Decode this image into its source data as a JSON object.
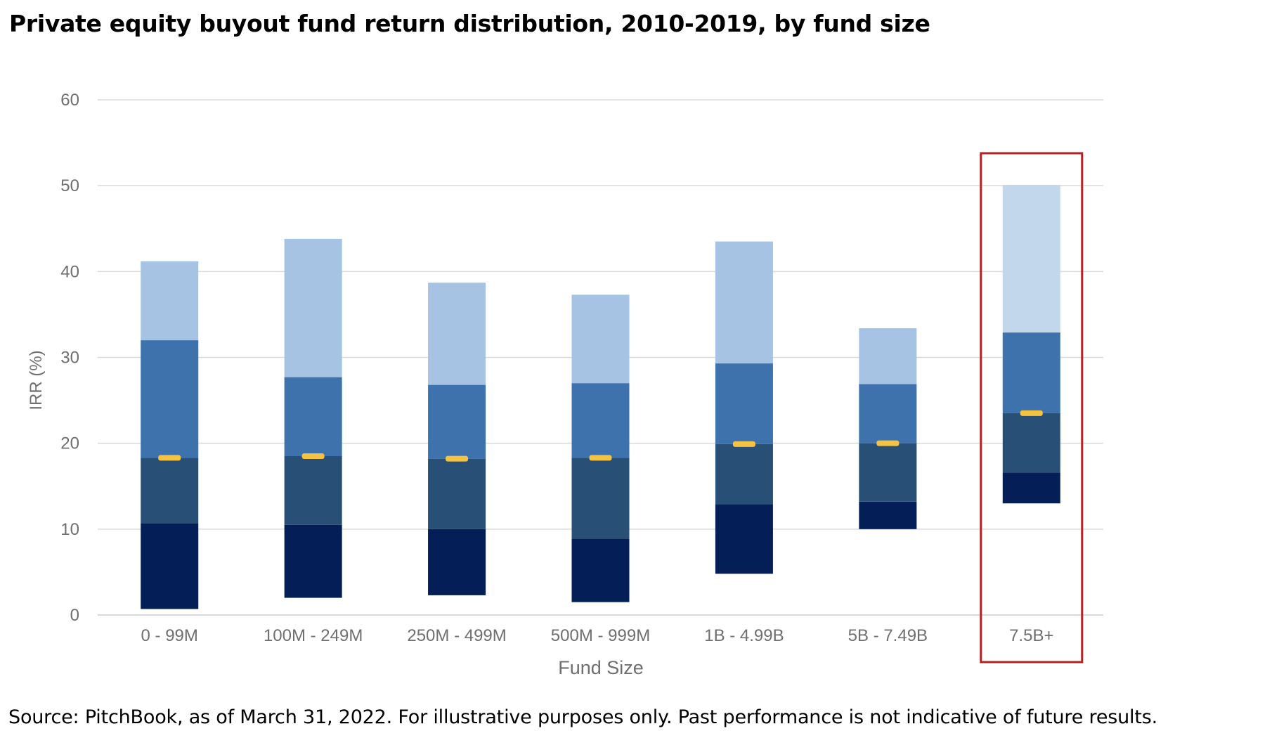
{
  "title": "Private equity buyout fund return distribution, 2010-2019, by fund size",
  "source": "Source: PitchBook, as of March 31, 2022. For illustrative purposes only. Past performance is not indicative of future results.",
  "colors": {
    "bottom_segment": "#041e57",
    "lower_mid_segment": "#284f76",
    "upper_mid_segment": "#3e72ac",
    "top_segment": "#a6c3e4",
    "top_segment_highlighted": "#c2d7ec",
    "median_marker": "#f5c242",
    "highlight_box": "#b22222",
    "gridline": "#d9d9d9",
    "axis_text": "#6f6f6f"
  },
  "chart_data": {
    "type": "bar",
    "subtype": "floating stacked bar (return distribution)",
    "title": "Private equity buyout fund return distribution, 2010-2019, by fund size",
    "xlabel": "Fund Size",
    "ylabel": "IRR (%)",
    "ylim": [
      0,
      60
    ],
    "yticks": [
      0,
      10,
      20,
      30,
      40,
      50,
      60
    ],
    "grid": true,
    "categories": [
      "0 - 99M",
      "100M - 249M",
      "250M - 499M",
      "500M - 999M",
      "1B - 4.99B",
      "5B - 7.49B",
      "7.5B+"
    ],
    "distribution": [
      {
        "category": "0 - 99M",
        "min": 0.7,
        "q1": 10.7,
        "median_bar": 18.3,
        "q3": 32.0,
        "max": 41.2,
        "marker": 18.3
      },
      {
        "category": "100M - 249M",
        "min": 2.0,
        "q1": 10.5,
        "median_bar": 18.5,
        "q3": 27.7,
        "max": 43.8,
        "marker": 18.5
      },
      {
        "category": "250M - 499M",
        "min": 2.3,
        "q1": 10.0,
        "median_bar": 18.2,
        "q3": 26.8,
        "max": 38.7,
        "marker": 18.2
      },
      {
        "category": "500M - 999M",
        "min": 1.5,
        "q1": 8.9,
        "median_bar": 18.3,
        "q3": 27.0,
        "max": 37.3,
        "marker": 18.3
      },
      {
        "category": "1B - 4.99B",
        "min": 4.8,
        "q1": 12.9,
        "median_bar": 19.9,
        "q3": 29.3,
        "max": 43.5,
        "marker": 19.9
      },
      {
        "category": "5B - 7.49B",
        "min": 10.0,
        "q1": 13.2,
        "median_bar": 20.0,
        "q3": 26.9,
        "max": 33.4,
        "marker": 20.0
      },
      {
        "category": "7.5B+",
        "min": 13.0,
        "q1": 16.6,
        "median_bar": 23.5,
        "q3": 32.9,
        "max": 50.1,
        "marker": 23.5
      }
    ],
    "highlighted_category": "7.5B+"
  }
}
